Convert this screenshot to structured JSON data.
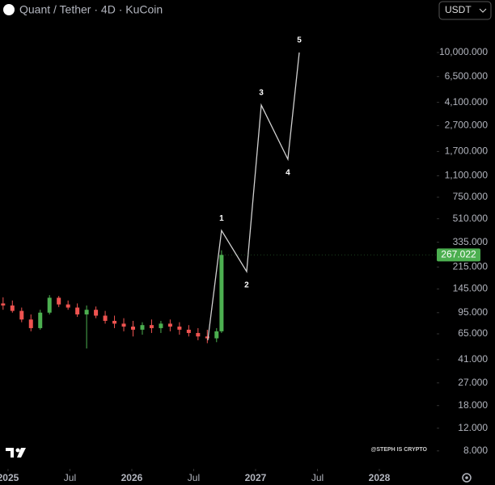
{
  "chart_data": {
    "type": "candlestick",
    "title": "Quant / Tether · 4D · KuCoin",
    "currency": "USDT",
    "watermark": "@STEPH IS CRYPTO",
    "log_scale": true,
    "up_color": "#4caf50",
    "down_color": "#ef5350",
    "x": [
      2024.96,
      2025.035,
      2025.11,
      2025.185,
      2025.26,
      2025.335,
      2025.41,
      2025.485,
      2025.56,
      2025.635,
      2025.71,
      2025.785,
      2025.86,
      2025.935,
      2026.01,
      2026.085,
      2026.16,
      2026.235,
      2026.31,
      2026.385,
      2026.46,
      2026.535,
      2026.61,
      2026.685,
      2026.725
    ],
    "open": [
      112,
      108,
      98,
      84,
      72,
      95,
      124,
      110,
      104,
      92,
      100,
      90,
      82,
      78,
      74,
      70,
      76,
      72,
      78,
      74,
      70,
      66,
      62,
      60,
      68
    ],
    "high": [
      125,
      118,
      104,
      92,
      100,
      130,
      128,
      118,
      112,
      108,
      106,
      98,
      90,
      86,
      82,
      80,
      84,
      82,
      84,
      80,
      76,
      72,
      70,
      72,
      290
    ],
    "low": [
      100,
      95,
      80,
      68,
      70,
      92,
      105,
      100,
      88,
      50,
      86,
      78,
      72,
      68,
      62,
      64,
      66,
      66,
      68,
      64,
      62,
      58,
      55,
      56,
      66
    ],
    "close": [
      108,
      98,
      84,
      72,
      95,
      124,
      110,
      104,
      92,
      100,
      90,
      82,
      78,
      74,
      70,
      76,
      72,
      78,
      74,
      70,
      66,
      62,
      60,
      68,
      267.022
    ],
    "last_price": 267.022,
    "wave": {
      "color": "#d0d0d0",
      "x": [
        2026.614,
        2026.725,
        2026.928,
        2027.046,
        2027.261,
        2027.353
      ],
      "values": [
        58,
        413,
        198,
        3900,
        1480,
        10000
      ],
      "labels": [
        null,
        "1",
        "2",
        "3",
        "4",
        "5"
      ]
    },
    "xlim": [
      2024.935,
      2028.464
    ],
    "xticks": [
      {
        "value": 2025,
        "label": "2025"
      },
      {
        "value": 2025.5,
        "label": "Jul"
      },
      {
        "value": 2026,
        "label": "2026"
      },
      {
        "value": 2026.5,
        "label": "Jul"
      },
      {
        "value": 2027,
        "label": "2027"
      },
      {
        "value": 2027.5,
        "label": "Jul"
      },
      {
        "value": 2028,
        "label": "2028"
      }
    ],
    "ylim": [
      5.8,
      25600
    ],
    "yticks": [
      {
        "value": 10000,
        "label": "10,000.000"
      },
      {
        "value": 6500,
        "label": "6,500.000"
      },
      {
        "value": 4100,
        "label": "4,100.000"
      },
      {
        "value": 2700,
        "label": "2,700.000"
      },
      {
        "value": 1700,
        "label": "1,700.000"
      },
      {
        "value": 1100,
        "label": "1,100.000"
      },
      {
        "value": 750,
        "label": "750.000"
      },
      {
        "value": 510,
        "label": "510.000"
      },
      {
        "value": 335,
        "label": "335.000"
      },
      {
        "value": 215,
        "label": "215.000"
      },
      {
        "value": 145,
        "label": "145.000"
      },
      {
        "value": 95,
        "label": "95.000"
      },
      {
        "value": 65,
        "label": "65.000"
      },
      {
        "value": 41,
        "label": "41.000"
      },
      {
        "value": 27,
        "label": "27.000"
      },
      {
        "value": 18,
        "label": "18.000"
      },
      {
        "value": 12,
        "label": "12.000"
      },
      {
        "value": 8,
        "label": "8.000"
      }
    ]
  }
}
